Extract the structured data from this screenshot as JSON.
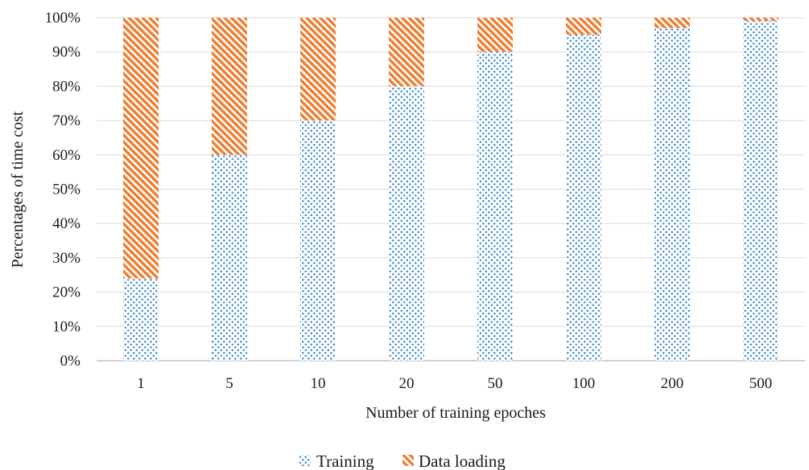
{
  "chart_data": {
    "type": "bar",
    "stacked": true,
    "percent_stacked": true,
    "categories": [
      "1",
      "5",
      "10",
      "20",
      "50",
      "100",
      "200",
      "500"
    ],
    "series": [
      {
        "name": "Training",
        "values": [
          24,
          60,
          70,
          80,
          90,
          95,
          97,
          99
        ],
        "color": "#4a90d0",
        "pattern": "dots"
      },
      {
        "name": "Data loading",
        "values": [
          76,
          40,
          30,
          20,
          10,
          5,
          3,
          1
        ],
        "color": "#ed7d31",
        "pattern": "diagonal-hatch"
      }
    ],
    "xlabel": "Number of training epoches",
    "ylabel": "Percentages of time cost",
    "ylim": [
      0,
      100
    ],
    "yticks": [
      "0%",
      "10%",
      "20%",
      "30%",
      "40%",
      "50%",
      "60%",
      "70%",
      "80%",
      "90%",
      "100%"
    ],
    "grid": true,
    "legend_position": "bottom"
  }
}
